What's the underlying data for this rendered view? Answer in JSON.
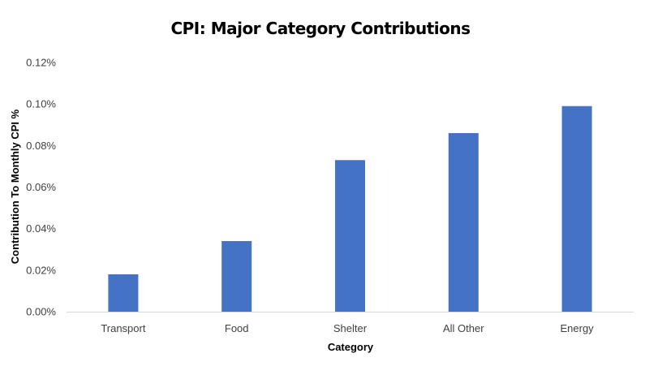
{
  "chart_data": {
    "type": "bar",
    "title": "CPI: Major Category Contributions",
    "xlabel": "Category",
    "ylabel": "Contribution To Monthly CPI %",
    "categories": [
      "Transport",
      "Food",
      "Shelter",
      "All Other",
      "Energy"
    ],
    "values": [
      0.018,
      0.034,
      0.073,
      0.086,
      0.099
    ],
    "ylim": [
      0,
      0.12
    ],
    "yticks": [
      "0.00%",
      "0.02%",
      "0.04%",
      "0.06%",
      "0.08%",
      "0.10%",
      "0.12%"
    ],
    "grid": false,
    "legend": "none",
    "bar_color": "#4472C4",
    "axis_color": "#D9D9D9"
  }
}
